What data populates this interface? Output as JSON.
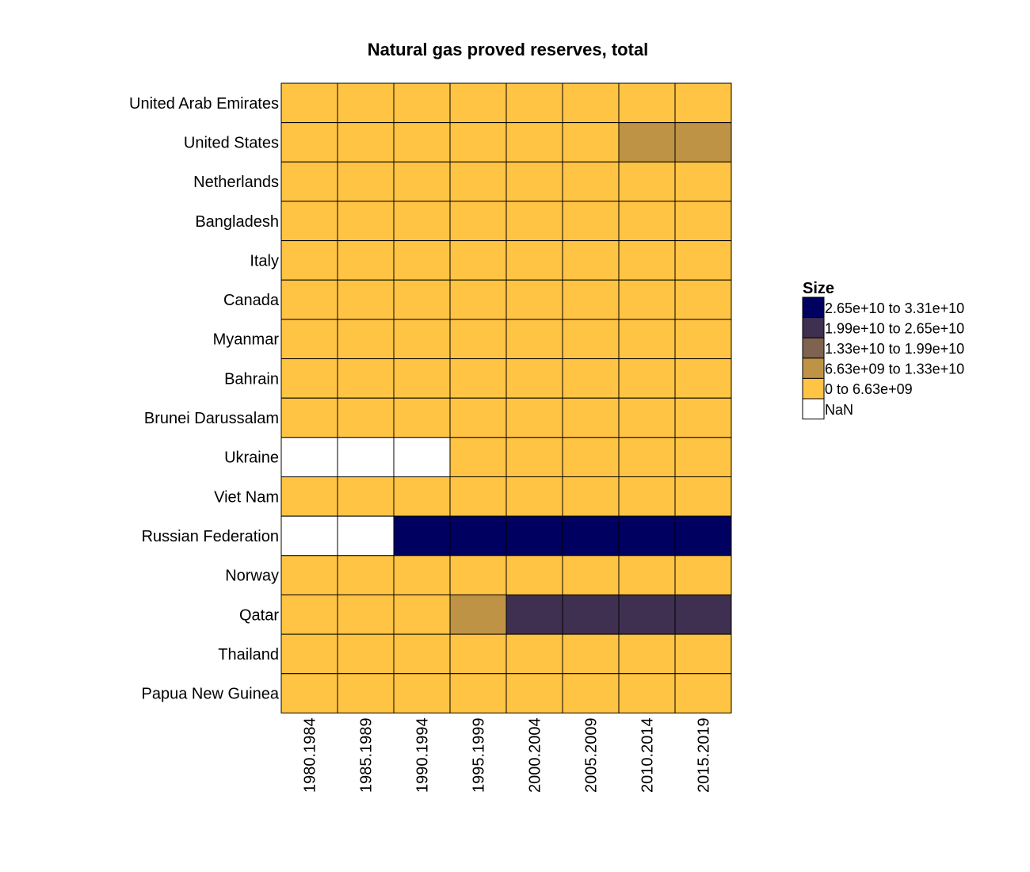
{
  "chart_data": {
    "type": "heatmap",
    "title": "Natural gas proved reserves, total",
    "xlabel": "",
    "ylabel": "",
    "rows": [
      "United Arab Emirates",
      "United States",
      "Netherlands",
      "Bangladesh",
      "Italy",
      "Canada",
      "Myanmar",
      "Bahrain",
      "Brunei Darussalam",
      "Ukraine",
      "Viet Nam",
      "Russian Federation",
      "Norway",
      "Qatar",
      "Thailand",
      "Papua New Guinea"
    ],
    "columns": [
      "1980.1984",
      "1985.1989",
      "1990.1994",
      "1995.1999",
      "2000.2004",
      "2005.2009",
      "2010.2014",
      "2015.2019"
    ],
    "cells": [
      [
        0,
        0,
        0,
        0,
        0,
        0,
        0,
        0
      ],
      [
        0,
        0,
        0,
        0,
        0,
        0,
        1,
        1
      ],
      [
        0,
        0,
        0,
        0,
        0,
        0,
        0,
        0
      ],
      [
        0,
        0,
        0,
        0,
        0,
        0,
        0,
        0
      ],
      [
        0,
        0,
        0,
        0,
        0,
        0,
        0,
        0
      ],
      [
        0,
        0,
        0,
        0,
        0,
        0,
        0,
        0
      ],
      [
        0,
        0,
        0,
        0,
        0,
        0,
        0,
        0
      ],
      [
        0,
        0,
        0,
        0,
        0,
        0,
        0,
        0
      ],
      [
        0,
        0,
        0,
        0,
        0,
        0,
        0,
        0
      ],
      [
        -1,
        -1,
        -1,
        0,
        0,
        0,
        0,
        0
      ],
      [
        0,
        0,
        0,
        0,
        0,
        0,
        0,
        0
      ],
      [
        -1,
        -1,
        4,
        4,
        4,
        4,
        4,
        4
      ],
      [
        0,
        0,
        0,
        0,
        0,
        0,
        0,
        0
      ],
      [
        0,
        0,
        0,
        1,
        3,
        3,
        3,
        3
      ],
      [
        0,
        0,
        0,
        0,
        0,
        0,
        0,
        0
      ],
      [
        0,
        0,
        0,
        0,
        0,
        0,
        0,
        0
      ]
    ],
    "legend": {
      "title": "Size",
      "position": "right",
      "bins": [
        {
          "label": "2.65e+10 to 3.31e+10",
          "color": "#000060"
        },
        {
          "label": "1.99e+10 to 2.65e+10",
          "color": "#3f3052"
        },
        {
          "label": "1.33e+10 to 1.99e+10",
          "color": "#7e6350"
        },
        {
          "label": "6.63e+09 to 1.33e+10",
          "color": "#bf9346"
        },
        {
          "label": "0 to 6.63e+09",
          "color": "#ffc443"
        },
        {
          "label": "NaN",
          "color": "#ffffff"
        }
      ]
    },
    "bin_colors": {
      "-1": "#ffffff",
      "0": "#ffc443",
      "1": "#bf9346",
      "2": "#7e6350",
      "3": "#3f3052",
      "4": "#000060"
    },
    "grid": true
  }
}
